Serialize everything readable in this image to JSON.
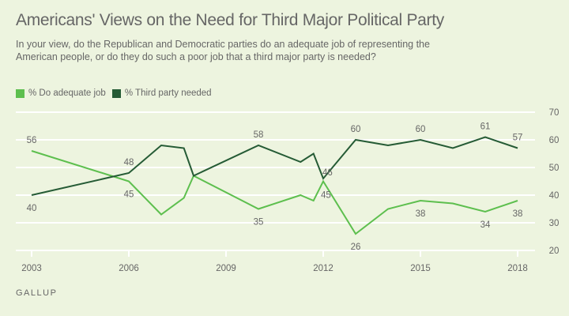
{
  "header": {
    "title": "Americans' Views on the Need for Third Major Political Party",
    "subtitle": "In your view, do the Republican and Democratic parties do an adequate job of representing the American people, or do they do such a poor job that a third major party is needed?"
  },
  "source": "GALLUP",
  "colors": {
    "background": "#edf4df",
    "adequate": "#5dbf4e",
    "third_party": "#255b35",
    "grid": "#ffffff",
    "text": "#666666"
  },
  "chart_data": {
    "type": "line",
    "title": "Americans' Views on the Need for Third Major Political Party",
    "xlabel": "",
    "ylabel": "",
    "xlim": [
      2003,
      2018
    ],
    "ylim": [
      20,
      70
    ],
    "x_ticks": [
      2003,
      2006,
      2009,
      2012,
      2015,
      2018
    ],
    "y_ticks": [
      20,
      30,
      40,
      50,
      60,
      70
    ],
    "y_axis_side": "right",
    "grid": true,
    "legend_position": "top-left",
    "series": [
      {
        "name": "% Do adequate job",
        "color": "#5dbf4e",
        "points": [
          {
            "x": 2003,
            "y": 56,
            "label": "56",
            "label_pos": "above"
          },
          {
            "x": 2006,
            "y": 45,
            "label": "45",
            "label_pos": "below"
          },
          {
            "x": 2007,
            "y": 33
          },
          {
            "x": 2007.7,
            "y": 39
          },
          {
            "x": 2008,
            "y": 47
          },
          {
            "x": 2010,
            "y": 35,
            "label": "35",
            "label_pos": "below"
          },
          {
            "x": 2011.3,
            "y": 40
          },
          {
            "x": 2011.7,
            "y": 38
          },
          {
            "x": 2012,
            "y": 45,
            "label": "45",
            "label_pos": "right-below"
          },
          {
            "x": 2013,
            "y": 26,
            "label": "26",
            "label_pos": "below"
          },
          {
            "x": 2014,
            "y": 35
          },
          {
            "x": 2015,
            "y": 38,
            "label": "38",
            "label_pos": "below"
          },
          {
            "x": 2016,
            "y": 37
          },
          {
            "x": 2017,
            "y": 34,
            "label": "34",
            "label_pos": "below"
          },
          {
            "x": 2018,
            "y": 38,
            "label": "38",
            "label_pos": "below"
          }
        ]
      },
      {
        "name": "% Third party needed",
        "color": "#255b35",
        "points": [
          {
            "x": 2003,
            "y": 40,
            "label": "40",
            "label_pos": "below"
          },
          {
            "x": 2006,
            "y": 48,
            "label": "48",
            "label_pos": "above"
          },
          {
            "x": 2007,
            "y": 58
          },
          {
            "x": 2007.7,
            "y": 57
          },
          {
            "x": 2008,
            "y": 47
          },
          {
            "x": 2010,
            "y": 58,
            "label": "58",
            "label_pos": "above"
          },
          {
            "x": 2011.3,
            "y": 52
          },
          {
            "x": 2011.7,
            "y": 55
          },
          {
            "x": 2012,
            "y": 46,
            "label": "46",
            "label_pos": "right-above"
          },
          {
            "x": 2013,
            "y": 60,
            "label": "60",
            "label_pos": "above"
          },
          {
            "x": 2014,
            "y": 58
          },
          {
            "x": 2015,
            "y": 60,
            "label": "60",
            "label_pos": "above"
          },
          {
            "x": 2016,
            "y": 57
          },
          {
            "x": 2017,
            "y": 61,
            "label": "61",
            "label_pos": "above"
          },
          {
            "x": 2018,
            "y": 57,
            "label": "57",
            "label_pos": "above"
          }
        ]
      }
    ]
  }
}
